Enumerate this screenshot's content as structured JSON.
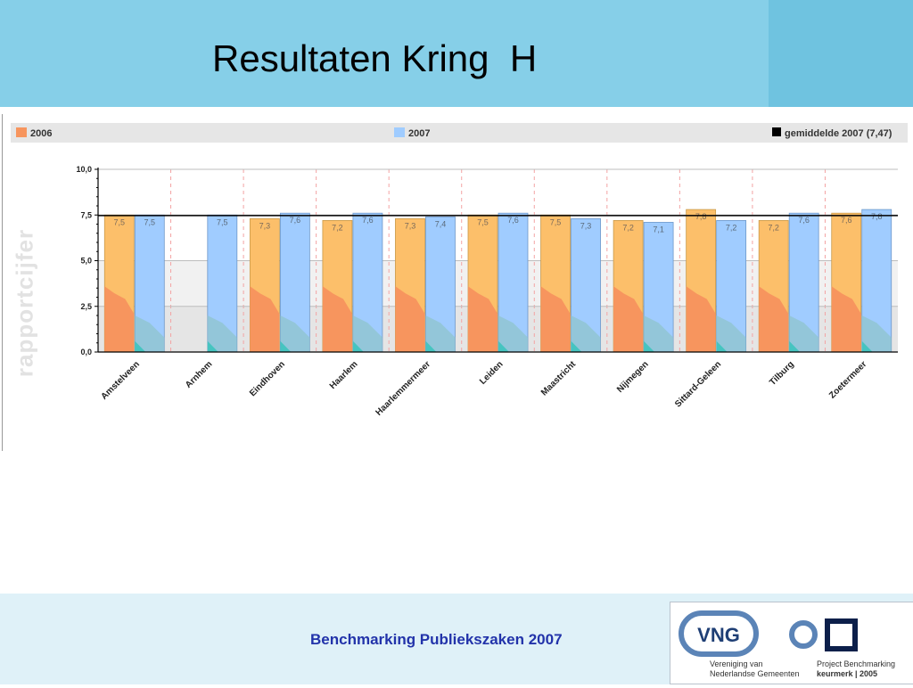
{
  "slide": {
    "title": "Resultaten Kring  H",
    "side_label": "rapportcijfer",
    "footer": "Benchmarking Publiekszaken 2007"
  },
  "logos": {
    "vng_text": "VNG",
    "vng_caption_1": "Vereniging van",
    "vng_caption_2": "Nederlandse Gemeenten",
    "project_caption_1": "Project Benchmarking",
    "project_caption_2": "keurmerk | 2005"
  },
  "colors": {
    "series_2006": "#fcbf6a",
    "series_2006_legend": "#f7955e",
    "series_2006_low": "#f7955e",
    "series_2007": "#a0ccff",
    "teal": "#46c4c0",
    "average_line": "#000000",
    "header": "#86cfe8"
  },
  "chart_data": {
    "type": "bar",
    "title": "",
    "xlabel": "",
    "ylabel": "",
    "ylim": [
      0,
      10
    ],
    "yticks": [
      "0,0",
      "2,5",
      "5,0",
      "7,5",
      "10,0"
    ],
    "categories": [
      "Amstelveen",
      "Arnhem",
      "Eindhoven",
      "Haarlem",
      "Haarlemmermeer",
      "Leiden",
      "Maastricht",
      "Nijmegen",
      "Sittard-Geleen",
      "Tilburg",
      "Zoetermeer"
    ],
    "series": [
      {
        "name": "2006",
        "values": [
          7.5,
          null,
          7.3,
          7.2,
          7.3,
          7.5,
          7.5,
          7.2,
          7.8,
          7.2,
          7.6
        ],
        "labels": [
          "7,5",
          "",
          "7,3",
          "7,2",
          "7,3",
          "7,5",
          "7,5",
          "7,2",
          "7,8",
          "7,2",
          "7,6"
        ]
      },
      {
        "name": "2007",
        "values": [
          7.5,
          7.5,
          7.6,
          7.6,
          7.4,
          7.6,
          7.3,
          7.1,
          7.2,
          7.6,
          7.8
        ],
        "labels": [
          "7,5",
          "7,5",
          "7,6",
          "7,6",
          "7,4",
          "7,6",
          "7,3",
          "7,1",
          "7,2",
          "7,6",
          "7,8"
        ]
      }
    ],
    "average": {
      "label": "gemiddelde 2007 (7,47)",
      "value": 7.47
    },
    "legend_position": "top",
    "grid": true
  }
}
